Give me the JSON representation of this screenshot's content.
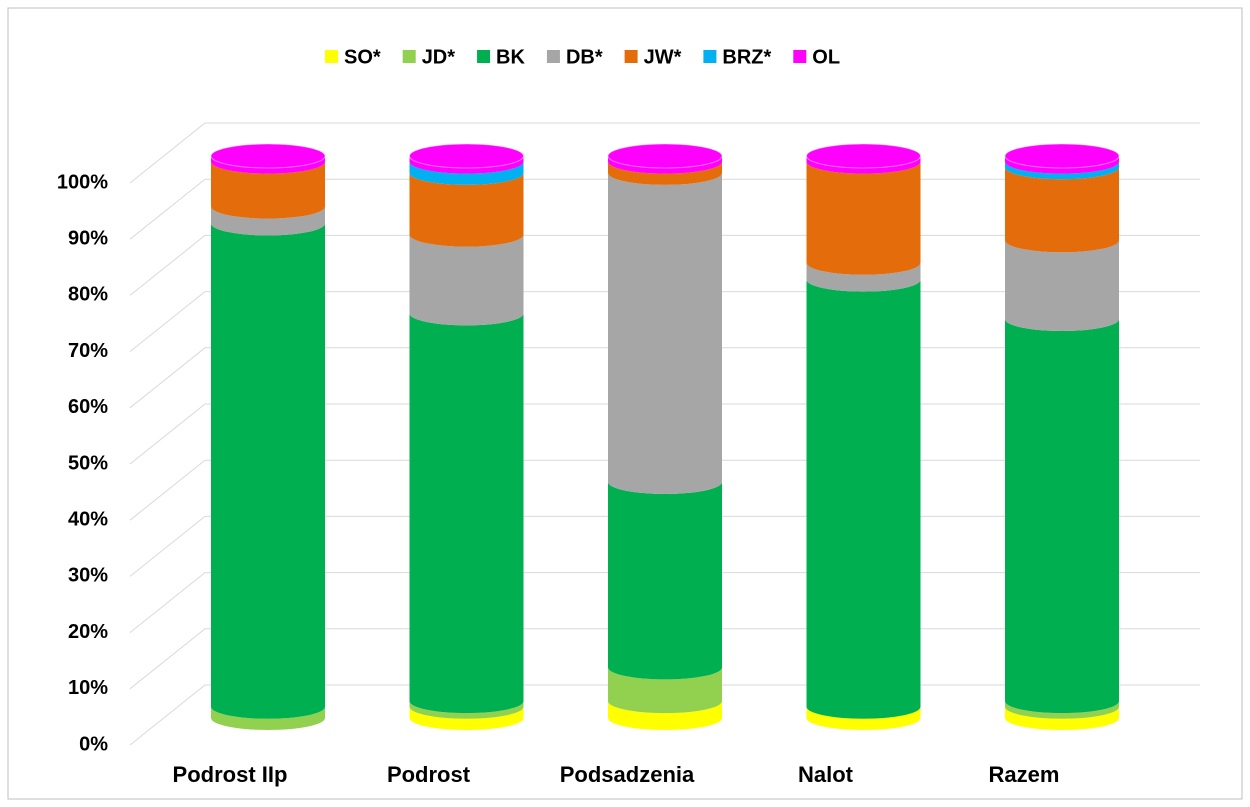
{
  "chart_data": {
    "type": "bar",
    "stacked": true,
    "categories": [
      "Podrost IIp",
      "Podrost",
      "Podsadzenia",
      "Nalot",
      "Razem"
    ],
    "series": [
      {
        "name": "SO*",
        "color": "#ffff00",
        "values": [
          0,
          2,
          3,
          2,
          2
        ]
      },
      {
        "name": "JD*",
        "color": "#92d050",
        "values": [
          2,
          1,
          6,
          0,
          1
        ]
      },
      {
        "name": "BK",
        "color": "#00b050",
        "values": [
          86,
          69,
          33,
          76,
          68
        ]
      },
      {
        "name": "DB*",
        "color": "#a6a6a6",
        "values": [
          3,
          14,
          55,
          3,
          14
        ]
      },
      {
        "name": "JW*",
        "color": "#e46c0a",
        "values": [
          8,
          11,
          2,
          18,
          13
        ]
      },
      {
        "name": "BRZ*",
        "color": "#00b0f0",
        "values": [
          0,
          2,
          0,
          0,
          1
        ]
      },
      {
        "name": "OL",
        "color": "#ff00ff",
        "values": [
          1,
          1,
          1,
          1,
          1
        ]
      }
    ],
    "ylim": [
      0,
      100
    ],
    "yticks": [
      {
        "value": 0,
        "label": "0%"
      },
      {
        "value": 10,
        "label": "10%"
      },
      {
        "value": 20,
        "label": "20%"
      },
      {
        "value": 30,
        "label": "30%"
      },
      {
        "value": 40,
        "label": "40%"
      },
      {
        "value": 50,
        "label": "50%"
      },
      {
        "value": 60,
        "label": "60%"
      },
      {
        "value": 70,
        "label": "70%"
      },
      {
        "value": 80,
        "label": "80%"
      },
      {
        "value": 90,
        "label": "90%"
      },
      {
        "value": 100,
        "label": "100%"
      }
    ],
    "grid": true,
    "legend": "top"
  }
}
